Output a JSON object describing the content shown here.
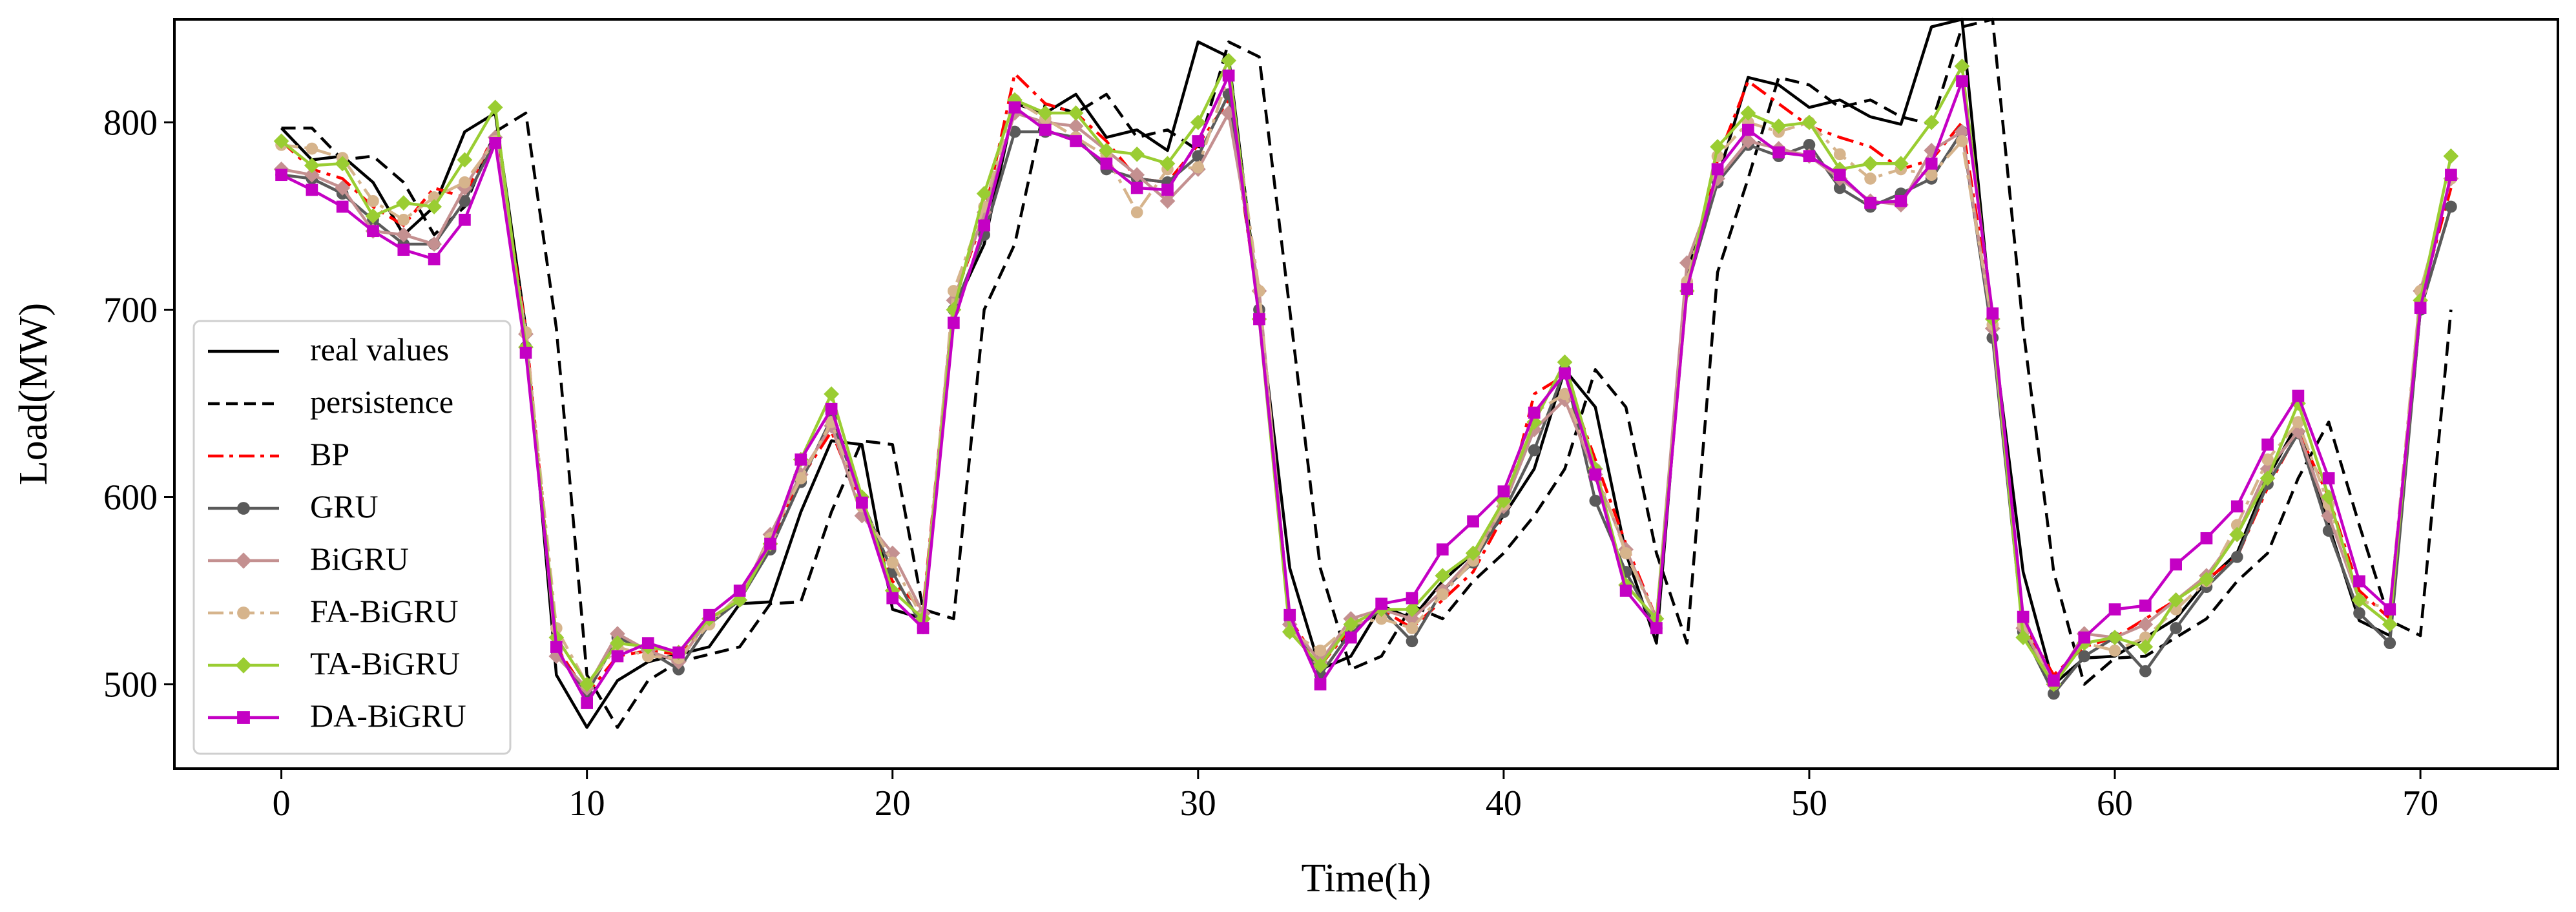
{
  "chart_data": {
    "type": "line",
    "title": "",
    "xlabel": "Time(h)",
    "ylabel": "Load(MW)",
    "xlim": [
      -3.5,
      74.5
    ],
    "ylim": [
      455,
      855
    ],
    "xticks": [
      0,
      10,
      20,
      30,
      40,
      50,
      60,
      70
    ],
    "yticks": [
      500,
      600,
      700,
      800
    ],
    "legend_position": "lower-left",
    "grid": false,
    "x": [
      0,
      1,
      2,
      3,
      4,
      5,
      6,
      7,
      8,
      9,
      10,
      11,
      12,
      13,
      14,
      15,
      16,
      17,
      18,
      19,
      20,
      21,
      22,
      23,
      24,
      25,
      26,
      27,
      28,
      29,
      30,
      31,
      32,
      33,
      34,
      35,
      36,
      37,
      38,
      39,
      40,
      41,
      42,
      43,
      44,
      45,
      46,
      47,
      48,
      49,
      50,
      51,
      52,
      53,
      54,
      55,
      56,
      57,
      58,
      59,
      60,
      61,
      62,
      63,
      64,
      65,
      66,
      67,
      68,
      69,
      70,
      71
    ],
    "series": [
      {
        "name": "real values",
        "color": "#000000",
        "dash": "solid",
        "marker": "none",
        "values": [
          797,
          780,
          782,
          768,
          740,
          755,
          795,
          805,
          690,
          505,
          477,
          502,
          512,
          516,
          520,
          543,
          544,
          592,
          630,
          628,
          540,
          535,
          700,
          735,
          810,
          805,
          815,
          792,
          796,
          785,
          843,
          835,
          700,
          562,
          508,
          515,
          542,
          535,
          555,
          570,
          590,
          615,
          668,
          648,
          570,
          522,
          720,
          770,
          824,
          820,
          808,
          812,
          803,
          799,
          851,
          855,
          690,
          560,
          500,
          514,
          515,
          525,
          535,
          555,
          570,
          610,
          640,
          585,
          534,
          526,
          700,
          755
        ]
      },
      {
        "name": "persistence",
        "color": "#000000",
        "dash": "dashed",
        "marker": "none",
        "values": [
          797,
          797,
          780,
          782,
          768,
          740,
          755,
          795,
          805,
          690,
          505,
          477,
          502,
          512,
          516,
          520,
          543,
          544,
          592,
          630,
          628,
          540,
          535,
          700,
          735,
          810,
          805,
          815,
          792,
          796,
          785,
          843,
          835,
          700,
          562,
          508,
          515,
          542,
          535,
          555,
          570,
          590,
          615,
          668,
          648,
          570,
          522,
          720,
          770,
          824,
          820,
          808,
          812,
          803,
          799,
          851,
          855,
          690,
          560,
          500,
          514,
          515,
          525,
          535,
          555,
          570,
          610,
          640,
          585,
          534,
          526,
          700
        ]
      },
      {
        "name": "BP",
        "color": "#ff0000",
        "dash": "dashdot",
        "marker": "none",
        "values": [
          790,
          775,
          770,
          755,
          745,
          765,
          760,
          795,
          690,
          520,
          495,
          515,
          518,
          516,
          535,
          545,
          575,
          610,
          635,
          595,
          555,
          540,
          705,
          750,
          826,
          810,
          805,
          790,
          770,
          768,
          788,
          812,
          700,
          535,
          510,
          530,
          540,
          530,
          545,
          560,
          590,
          655,
          665,
          620,
          575,
          535,
          712,
          780,
          822,
          810,
          798,
          792,
          787,
          775,
          780,
          800,
          695,
          532,
          505,
          520,
          525,
          535,
          545,
          556,
          568,
          605,
          635,
          600,
          550,
          535,
          705,
          765
        ]
      },
      {
        "name": "GRU",
        "color": "#5a5a5a",
        "dash": "solid",
        "marker": "circle",
        "values": [
          772,
          770,
          762,
          748,
          735,
          735,
          758,
          790,
          680,
          518,
          495,
          525,
          518,
          508,
          532,
          545,
          572,
          608,
          642,
          598,
          560,
          530,
          700,
          740,
          795,
          795,
          792,
          775,
          770,
          768,
          782,
          815,
          700,
          535,
          505,
          528,
          540,
          523,
          550,
          565,
          592,
          625,
          668,
          598,
          560,
          530,
          712,
          768,
          788,
          782,
          788,
          765,
          755,
          762,
          770,
          795,
          685,
          528,
          495,
          515,
          525,
          507,
          530,
          552,
          568,
          607,
          634,
          582,
          538,
          522,
          700,
          755
        ]
      },
      {
        "name": "BiGRU",
        "color": "#c49090",
        "dash": "solid",
        "marker": "diamond",
        "values": [
          775,
          772,
          765,
          742,
          740,
          735,
          765,
          792,
          687,
          515,
          498,
          527,
          518,
          512,
          535,
          545,
          580,
          612,
          638,
          590,
          570,
          538,
          705,
          752,
          805,
          800,
          798,
          785,
          772,
          758,
          775,
          805,
          710,
          532,
          512,
          535,
          540,
          535,
          550,
          568,
          595,
          636,
          652,
          612,
          572,
          535,
          725,
          770,
          790,
          786,
          782,
          770,
          758,
          756,
          785,
          795,
          690,
          530,
          500,
          527,
          525,
          532,
          545,
          558,
          580,
          615,
          635,
          590,
          545,
          532,
          710,
          770
        ]
      },
      {
        "name": "FA-BiGRU",
        "color": "#d6b48c",
        "dash": "dashdot",
        "marker": "circle",
        "values": [
          788,
          786,
          781,
          758,
          748,
          760,
          768,
          790,
          688,
          530,
          500,
          520,
          515,
          514,
          532,
          548,
          578,
          610,
          640,
          595,
          565,
          535,
          710,
          755,
          812,
          802,
          792,
          782,
          752,
          775,
          776,
          825,
          710,
          528,
          518,
          532,
          535,
          530,
          548,
          566,
          596,
          645,
          655,
          615,
          570,
          535,
          715,
          782,
          800,
          795,
          800,
          783,
          770,
          775,
          772,
          790,
          692,
          532,
          500,
          522,
          518,
          525,
          540,
          555,
          585,
          620,
          640,
          596,
          545,
          540,
          710,
          770
        ]
      },
      {
        "name": "TA-BiGRU",
        "color": "#9acd32",
        "dash": "solid",
        "marker": "diamond",
        "values": [
          790,
          777,
          778,
          750,
          757,
          755,
          780,
          808,
          680,
          525,
          500,
          522,
          520,
          517,
          535,
          545,
          575,
          620,
          655,
          600,
          550,
          535,
          700,
          762,
          812,
          805,
          805,
          785,
          783,
          778,
          800,
          833,
          695,
          528,
          510,
          532,
          540,
          540,
          558,
          570,
          598,
          640,
          672,
          615,
          553,
          535,
          710,
          787,
          805,
          798,
          800,
          775,
          778,
          778,
          800,
          830,
          695,
          525,
          500,
          522,
          525,
          520,
          545,
          556,
          580,
          610,
          650,
          600,
          545,
          532,
          705,
          782
        ]
      },
      {
        "name": "DA-BiGRU",
        "color": "#c400c4",
        "dash": "solid",
        "marker": "square",
        "values": [
          772,
          764,
          755,
          742,
          732,
          727,
          748,
          789,
          677,
          520,
          490,
          515,
          522,
          517,
          537,
          550,
          575,
          620,
          647,
          597,
          546,
          530,
          693,
          745,
          808,
          796,
          790,
          778,
          765,
          764,
          790,
          825,
          695,
          537,
          500,
          525,
          543,
          546,
          572,
          587,
          603,
          645,
          666,
          612,
          550,
          530,
          711,
          775,
          796,
          784,
          782,
          772,
          757,
          758,
          778,
          822,
          698,
          536,
          502,
          525,
          540,
          542,
          564,
          578,
          595,
          628,
          654,
          610,
          555,
          540,
          701,
          772
        ]
      }
    ]
  }
}
